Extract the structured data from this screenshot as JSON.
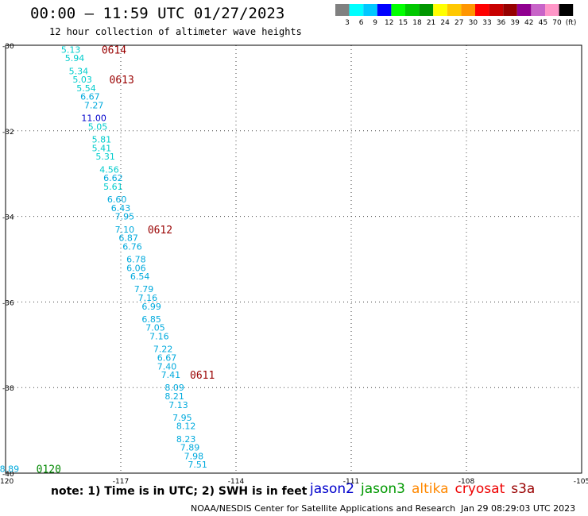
{
  "header": {
    "title": "00:00 – 11:59 UTC 01/27/2023",
    "subtitle": "12 hour collection of altimeter wave heights"
  },
  "legend": {
    "colors": [
      "#808080",
      "#00ffff",
      "#00c8ff",
      "#0000ff",
      "#00ff00",
      "#00c800",
      "#009600",
      "#ffff00",
      "#ffc800",
      "#ff9600",
      "#ff0000",
      "#c80000",
      "#960000",
      "#900090",
      "#c864c8",
      "#ff96c8",
      "#000000"
    ],
    "labels": [
      "3",
      "6",
      "9",
      "12",
      "15",
      "18",
      "21",
      "24",
      "27",
      "30",
      "33",
      "36",
      "39",
      "42",
      "45",
      "70",
      "(ft)"
    ]
  },
  "axes": {
    "lat_labels": [
      "-30",
      "-32",
      "-34",
      "-36",
      "-38",
      "-40"
    ],
    "lon_labels": [
      "-120",
      "-117",
      "-114",
      "-111",
      "-108",
      "-105"
    ]
  },
  "chart_data": {
    "type": "scatter",
    "x_range": [
      -120,
      -105
    ],
    "y_range": [
      -40,
      -30
    ],
    "points": [
      {
        "lon": -118.3,
        "lat": -30.1,
        "v": "5.13",
        "c": "#00cccc"
      },
      {
        "lon": -118.2,
        "lat": -30.3,
        "v": "5.94",
        "c": "#00cccc"
      },
      {
        "lon": -118.1,
        "lat": -30.6,
        "v": "5.34",
        "c": "#00cccc"
      },
      {
        "lon": -118.0,
        "lat": -30.8,
        "v": "5.03",
        "c": "#00cccc"
      },
      {
        "lon": -117.9,
        "lat": -31.0,
        "v": "5.54",
        "c": "#00cccc"
      },
      {
        "lon": -117.8,
        "lat": -31.2,
        "v": "6.67",
        "c": "#00aadd"
      },
      {
        "lon": -117.7,
        "lat": -31.4,
        "v": "7.27",
        "c": "#00aadd"
      },
      {
        "lon": -117.7,
        "lat": -31.7,
        "v": "11.00",
        "c": "#0000cc"
      },
      {
        "lon": -117.6,
        "lat": -31.9,
        "v": "5.05",
        "c": "#00cccc"
      },
      {
        "lon": -117.5,
        "lat": -32.2,
        "v": "5.81",
        "c": "#00cccc"
      },
      {
        "lon": -117.5,
        "lat": -32.4,
        "v": "5.41",
        "c": "#00cccc"
      },
      {
        "lon": -117.4,
        "lat": -32.6,
        "v": "5.31",
        "c": "#00cccc"
      },
      {
        "lon": -117.3,
        "lat": -32.9,
        "v": "4.56",
        "c": "#00cccc"
      },
      {
        "lon": -117.2,
        "lat": -33.1,
        "v": "6.62",
        "c": "#00aadd"
      },
      {
        "lon": -117.2,
        "lat": -33.3,
        "v": "5.61",
        "c": "#00cccc"
      },
      {
        "lon": -117.1,
        "lat": -33.6,
        "v": "6.60",
        "c": "#00aadd"
      },
      {
        "lon": -117.0,
        "lat": -33.8,
        "v": "6.43",
        "c": "#00aadd"
      },
      {
        "lon": -116.9,
        "lat": -34.0,
        "v": "7.95",
        "c": "#00aadd"
      },
      {
        "lon": -116.9,
        "lat": -34.3,
        "v": "7.10",
        "c": "#00aadd"
      },
      {
        "lon": -116.8,
        "lat": -34.5,
        "v": "6.87",
        "c": "#00aadd"
      },
      {
        "lon": -116.7,
        "lat": -34.7,
        "v": "6.76",
        "c": "#00aadd"
      },
      {
        "lon": -116.6,
        "lat": -35.0,
        "v": "6.78",
        "c": "#00aadd"
      },
      {
        "lon": -116.6,
        "lat": -35.2,
        "v": "6.06",
        "c": "#00aadd"
      },
      {
        "lon": -116.5,
        "lat": -35.4,
        "v": "6.54",
        "c": "#00aadd"
      },
      {
        "lon": -116.4,
        "lat": -35.7,
        "v": "7.79",
        "c": "#00aadd"
      },
      {
        "lon": -116.3,
        "lat": -35.9,
        "v": "7.16",
        "c": "#00aadd"
      },
      {
        "lon": -116.2,
        "lat": -36.1,
        "v": "6.99",
        "c": "#00aadd"
      },
      {
        "lon": -116.2,
        "lat": -36.4,
        "v": "6.85",
        "c": "#00aadd"
      },
      {
        "lon": -116.1,
        "lat": -36.6,
        "v": "7.05",
        "c": "#00aadd"
      },
      {
        "lon": -116.0,
        "lat": -36.8,
        "v": "7.16",
        "c": "#00aadd"
      },
      {
        "lon": -115.9,
        "lat": -37.1,
        "v": "7.22",
        "c": "#00aadd"
      },
      {
        "lon": -115.8,
        "lat": -37.3,
        "v": "6.67",
        "c": "#00aadd"
      },
      {
        "lon": -115.8,
        "lat": -37.5,
        "v": "7.40",
        "c": "#00aadd"
      },
      {
        "lon": -115.7,
        "lat": -37.7,
        "v": "7.41",
        "c": "#00aadd"
      },
      {
        "lon": -115.6,
        "lat": -38.0,
        "v": "8.09",
        "c": "#00aadd"
      },
      {
        "lon": -115.6,
        "lat": -38.2,
        "v": "8.21",
        "c": "#00aadd"
      },
      {
        "lon": -115.5,
        "lat": -38.4,
        "v": "7.13",
        "c": "#00aadd"
      },
      {
        "lon": -115.4,
        "lat": -38.7,
        "v": "7.95",
        "c": "#00aadd"
      },
      {
        "lon": -115.3,
        "lat": -38.9,
        "v": "8.12",
        "c": "#00aadd"
      },
      {
        "lon": -115.3,
        "lat": -39.2,
        "v": "8.23",
        "c": "#00aadd"
      },
      {
        "lon": -115.2,
        "lat": -39.4,
        "v": "7.89",
        "c": "#00aadd"
      },
      {
        "lon": -115.1,
        "lat": -39.6,
        "v": "7.98",
        "c": "#00aadd"
      },
      {
        "lon": -115.0,
        "lat": -39.8,
        "v": "7.51",
        "c": "#00aadd"
      },
      {
        "lon": -119.9,
        "lat": -39.9,
        "v": "8.89",
        "c": "#00aadd"
      }
    ],
    "time_labels": [
      {
        "lon": -117.5,
        "lat": -30.1,
        "v": "0614",
        "c": "#990000"
      },
      {
        "lon": -117.3,
        "lat": -30.8,
        "v": "0613",
        "c": "#990000"
      },
      {
        "lon": -116.3,
        "lat": -34.3,
        "v": "0612",
        "c": "#990000"
      },
      {
        "lon": -115.2,
        "lat": -37.7,
        "v": "0611",
        "c": "#990000"
      },
      {
        "lon": -119.2,
        "lat": -39.9,
        "v": "0120",
        "c": "#008800"
      }
    ]
  },
  "footer": {
    "note": "note:  1) Time is in UTC;  2) SWH is in feet",
    "satellites": [
      {
        "name": "jason2",
        "color": "#0000cc"
      },
      {
        "name": "jason3",
        "color": "#009900"
      },
      {
        "name": "altika",
        "color": "#ff8800"
      },
      {
        "name": "cryosat",
        "color": "#ee0000"
      },
      {
        "name": "s3a",
        "color": "#990000"
      }
    ],
    "credit": "NOAA/NESDIS Center for Satellite Applications and Research",
    "timestamp": "Jan 29 08:29:03 UTC 2023"
  }
}
